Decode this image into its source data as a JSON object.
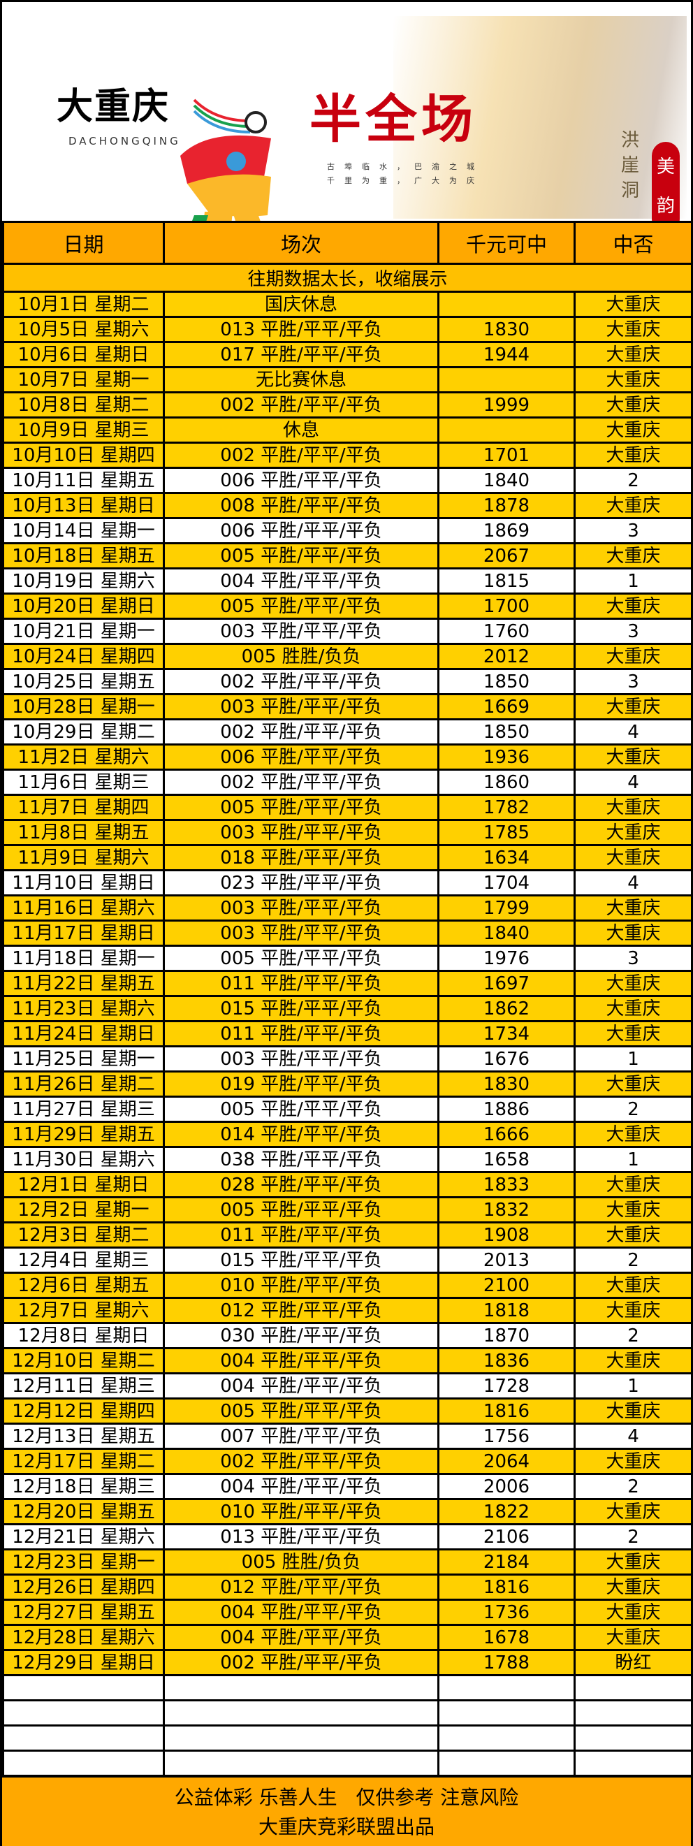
{
  "banner": {
    "brand_cn": "大重庆",
    "brand_en": "DACHONGQING",
    "title": "半全场",
    "slogan_lines": [
      "古埠临水，巴渝之城",
      "千里为重，广大为庆"
    ],
    "place": "洪崖洞",
    "seal": "美韵"
  },
  "table": {
    "headers": [
      "日期",
      "场次",
      "千元可中",
      "中否"
    ],
    "collapsed_note": "往期数据太长，收缩展示",
    "rows": [
      [
        "10月1日 星期二",
        "国庆休息",
        "",
        "大重庆"
      ],
      [
        "10月5日 星期六",
        "013 平胜/平平/平负",
        "1830",
        "大重庆"
      ],
      [
        "10月6日 星期日",
        "017 平胜/平平/平负",
        "1944",
        "大重庆"
      ],
      [
        "10月7日 星期一",
        "无比赛休息",
        "",
        "大重庆"
      ],
      [
        "10月8日 星期二",
        "002 平胜/平平/平负",
        "1999",
        "大重庆"
      ],
      [
        "10月9日 星期三",
        "休息",
        "",
        "大重庆"
      ],
      [
        "10月10日 星期四",
        "002 平胜/平平/平负",
        "1701",
        "大重庆"
      ],
      [
        "10月11日 星期五",
        "006 平胜/平平/平负",
        "1840",
        "2"
      ],
      [
        "10月13日 星期日",
        "008 平胜/平平/平负",
        "1878",
        "大重庆"
      ],
      [
        "10月14日 星期一",
        "006 平胜/平平/平负",
        "1869",
        "3"
      ],
      [
        "10月18日 星期五",
        "005 平胜/平平/平负",
        "2067",
        "大重庆"
      ],
      [
        "10月19日 星期六",
        "004 平胜/平平/平负",
        "1815",
        "1"
      ],
      [
        "10月20日 星期日",
        "005 平胜/平平/平负",
        "1700",
        "大重庆"
      ],
      [
        "10月21日 星期一",
        "003 平胜/平平/平负",
        "1760",
        "3"
      ],
      [
        "10月24日 星期四",
        "005 胜胜/负负",
        "2012",
        "大重庆"
      ],
      [
        "10月25日 星期五",
        "002 平胜/平平/平负",
        "1850",
        "3"
      ],
      [
        "10月28日 星期一",
        "003 平胜/平平/平负",
        "1669",
        "大重庆"
      ],
      [
        "10月29日 星期二",
        "002 平胜/平平/平负",
        "1850",
        "4"
      ],
      [
        "11月2日 星期六",
        "006 平胜/平平/平负",
        "1936",
        "大重庆"
      ],
      [
        "11月6日 星期三",
        "002 平胜/平平/平负",
        "1860",
        "4"
      ],
      [
        "11月7日 星期四",
        "005 平胜/平平/平负",
        "1782",
        "大重庆"
      ],
      [
        "11月8日 星期五",
        "003 平胜/平平/平负",
        "1785",
        "大重庆"
      ],
      [
        "11月9日 星期六",
        "018 平胜/平平/平负",
        "1634",
        "大重庆"
      ],
      [
        "11月10日 星期日",
        "023 平胜/平平/平负",
        "1704",
        "4"
      ],
      [
        "11月16日 星期六",
        "003 平胜/平平/平负",
        "1799",
        "大重庆"
      ],
      [
        "11月17日 星期日",
        "003 平胜/平平/平负",
        "1840",
        "大重庆"
      ],
      [
        "11月18日 星期一",
        "005 平胜/平平/平负",
        "1976",
        "3"
      ],
      [
        "11月22日 星期五",
        "011 平胜/平平/平负",
        "1697",
        "大重庆"
      ],
      [
        "11月23日 星期六",
        "015 平胜/平平/平负",
        "1862",
        "大重庆"
      ],
      [
        "11月24日 星期日",
        "011 平胜/平平/平负",
        "1734",
        "大重庆"
      ],
      [
        "11月25日 星期一",
        "003 平胜/平平/平负",
        "1676",
        "1"
      ],
      [
        "11月26日 星期二",
        "019 平胜/平平/平负",
        "1830",
        "大重庆"
      ],
      [
        "11月27日 星期三",
        "005 平胜/平平/平负",
        "1886",
        "2"
      ],
      [
        "11月29日 星期五",
        "014 平胜/平平/平负",
        "1666",
        "大重庆"
      ],
      [
        "11月30日 星期六",
        "038 平胜/平平/平负",
        "1658",
        "1"
      ],
      [
        "12月1日 星期日",
        "028 平胜/平平/平负",
        "1833",
        "大重庆"
      ],
      [
        "12月2日 星期一",
        "005 平胜/平平/平负",
        "1832",
        "大重庆"
      ],
      [
        "12月3日 星期二",
        "011 平胜/平平/平负",
        "1908",
        "大重庆"
      ],
      [
        "12月4日 星期三",
        "015 平胜/平平/平负",
        "2013",
        "2"
      ],
      [
        "12月6日 星期五",
        "010 平胜/平平/平负",
        "2100",
        "大重庆"
      ],
      [
        "12月7日 星期六",
        "012 平胜/平平/平负",
        "1818",
        "大重庆"
      ],
      [
        "12月8日 星期日",
        "030 平胜/平平/平负",
        "1870",
        "2"
      ],
      [
        "12月10日 星期二",
        "004 平胜/平平/平负",
        "1836",
        "大重庆"
      ],
      [
        "12月11日 星期三",
        "004 平胜/平平/平负",
        "1728",
        "1"
      ],
      [
        "12月12日 星期四",
        "005 平胜/平平/平负",
        "1816",
        "大重庆"
      ],
      [
        "12月13日 星期五",
        "007 平胜/平平/平负",
        "1756",
        "4"
      ],
      [
        "12月17日 星期二",
        "002 平胜/平平/平负",
        "2064",
        "大重庆"
      ],
      [
        "12月18日 星期三",
        "004 平胜/平平/平负",
        "2006",
        "2"
      ],
      [
        "12月20日 星期五",
        "010 平胜/平平/平负",
        "1822",
        "大重庆"
      ],
      [
        "12月21日 星期六",
        "013 平胜/平平/平负",
        "2106",
        "2"
      ],
      [
        "12月23日 星期一",
        "005 胜胜/负负",
        "2184",
        "大重庆"
      ],
      [
        "12月26日 星期四",
        "012 平胜/平平/平负",
        "1816",
        "大重庆"
      ],
      [
        "12月27日 星期五",
        "004 平胜/平平/平负",
        "1736",
        "大重庆"
      ],
      [
        "12月28日 星期六",
        "004 平胜/平平/平负",
        "1678",
        "大重庆"
      ],
      [
        "12月29日 星期日",
        "002 平胜/平平/平负",
        "1788",
        "盼红"
      ]
    ],
    "empty_rows": 4
  },
  "footer": {
    "line1": "公益体彩 乐善人生   仅供参考 注意风险",
    "line2": "大重庆竞彩联盟出品"
  },
  "colors": {
    "header": "#ffa800",
    "hit_row": "#ffd000",
    "note_row": "#ffc000",
    "title_red": "#c8000e"
  }
}
